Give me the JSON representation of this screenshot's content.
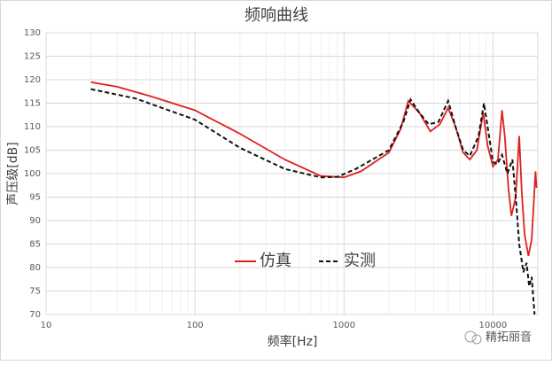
{
  "chart_data": {
    "type": "line",
    "title": "频响曲线",
    "x_label": "频率[Hz]",
    "y_label": "声压级[dB]",
    "log_x": true,
    "grid": true,
    "minor_grid": true,
    "legend": "inside-bottom-center",
    "watermark": "精拓丽音",
    "xlim": [
      10,
      20000
    ],
    "xticks": [
      10,
      100,
      1000,
      10000
    ],
    "ylim": [
      70,
      130
    ],
    "yticks": [
      70,
      75,
      80,
      85,
      90,
      95,
      100,
      105,
      110,
      115,
      120,
      125,
      130
    ],
    "series": [
      {
        "name": "仿真",
        "color": "#e02020",
        "dash": false,
        "x": [
          20,
          30,
          50,
          100,
          200,
          400,
          700,
          1000,
          1300,
          2000,
          2400,
          2700,
          3200,
          3800,
          4400,
          5000,
          5600,
          6300,
          7000,
          7800,
          8600,
          9200,
          10000,
          10800,
          11500,
          12000,
          12700,
          13300,
          14200,
          15000,
          15600,
          16300,
          17300,
          18200,
          19300,
          19600
        ],
        "values": [
          119.5,
          118.5,
          116.5,
          113.5,
          108.5,
          103,
          99.5,
          99.2,
          100.5,
          104.5,
          109.5,
          115.5,
          113,
          109,
          110.5,
          114,
          110,
          104.5,
          103,
          105,
          113,
          106,
          101.5,
          103,
          113.5,
          108,
          97,
          91,
          95,
          108,
          96,
          87,
          82.5,
          86,
          100.5,
          97
        ]
      },
      {
        "name": "实测",
        "color": "#111111",
        "dash": true,
        "x": [
          20,
          40,
          100,
          200,
          400,
          700,
          900,
          1200,
          2000,
          2500,
          2800,
          3200,
          3700,
          4300,
          5000,
          5600,
          6300,
          7000,
          8000,
          8700,
          9200,
          10000,
          10700,
          11500,
          12500,
          13500,
          14300,
          15000,
          16000,
          16800,
          17500,
          18200,
          19000
        ],
        "values": [
          118,
          116,
          111.5,
          105.5,
          101,
          99.2,
          99.3,
          101,
          105,
          111,
          115.8,
          113,
          110.5,
          111,
          115.5,
          110,
          105,
          103.8,
          108,
          115,
          110,
          102.5,
          102,
          104,
          100,
          103,
          94,
          85,
          79,
          81,
          76,
          78,
          70
        ]
      }
    ]
  }
}
